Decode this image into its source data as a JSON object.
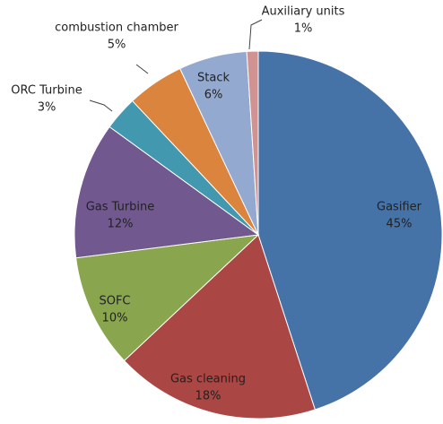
{
  "chart_data": {
    "type": "pie",
    "categories": [
      "Gasifier",
      "Gas cleaning",
      "SOFC",
      "Gas Turbine",
      "ORC Turbine",
      "combustion chamber",
      "Stack",
      "Auxiliary units"
    ],
    "values": [
      45,
      18,
      10,
      12,
      3,
      5,
      6,
      1
    ],
    "value_labels": [
      "45%",
      "18%",
      "10%",
      "12%",
      "3%",
      "5%",
      "6%",
      "1%"
    ],
    "colors": [
      "#4572a7",
      "#aa4643",
      "#89a54e",
      "#71588f",
      "#4198af",
      "#db843d",
      "#93a9cf",
      "#d19392"
    ]
  }
}
